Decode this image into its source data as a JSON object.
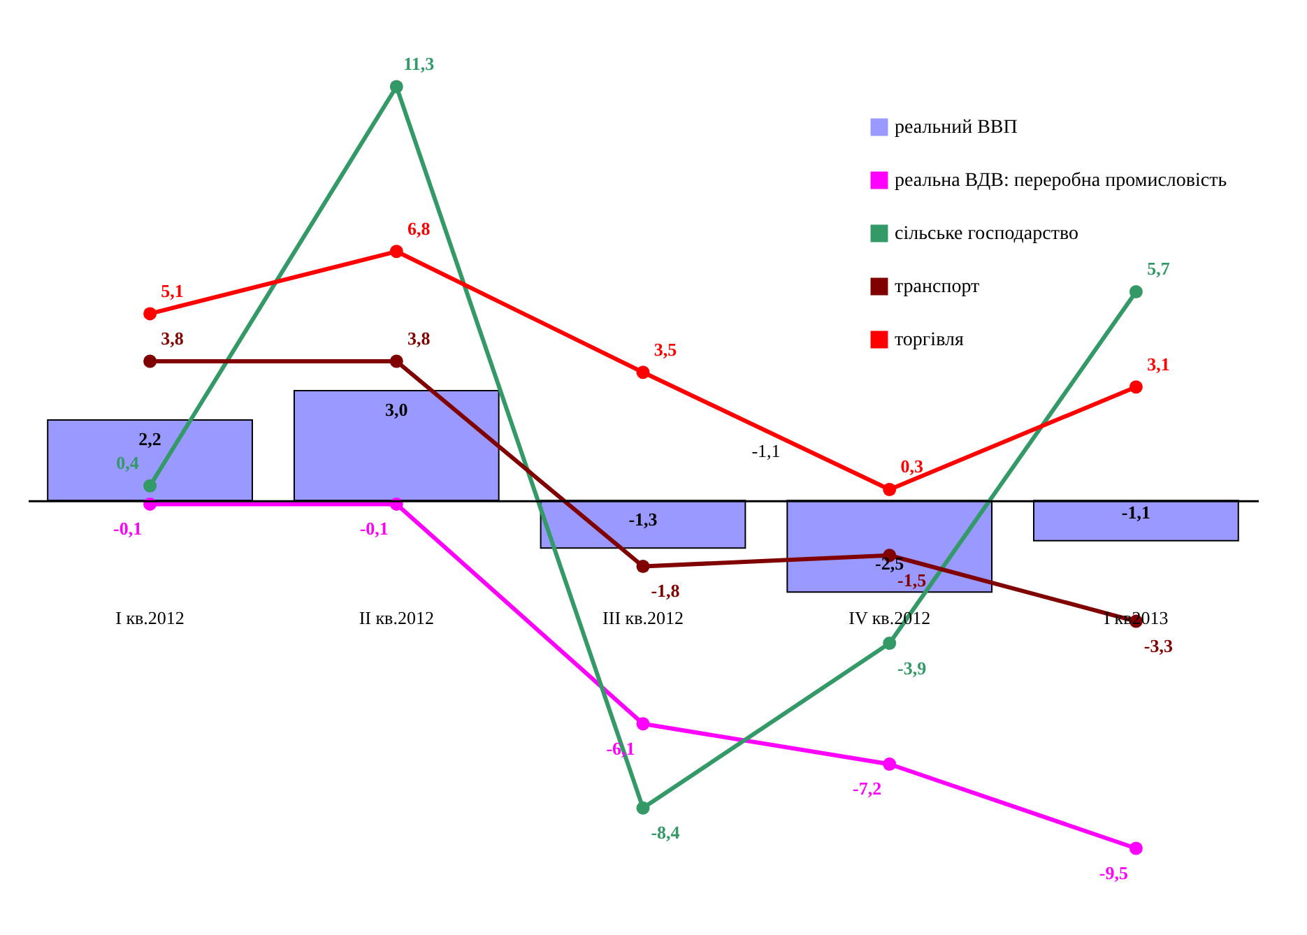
{
  "chart_data": {
    "type": "line",
    "categories": [
      "I кв.2012",
      "II кв.2012",
      "III кв.2012",
      "IV кв.2012",
      "I кв2013"
    ],
    "series": [
      {
        "name": "реальний ВВП",
        "type": "bar",
        "color": "#9999ff",
        "values": [
          2.2,
          3.0,
          -1.3,
          -2.5,
          -1.1
        ],
        "value_labels": [
          "2,2",
          "3,0",
          "-1,3",
          "-2,5",
          "-1,1"
        ]
      },
      {
        "name": "реальна ВДВ: переробна промисловість",
        "color": "#ff00ff",
        "values": [
          -0.1,
          -0.1,
          -6.1,
          -7.2,
          -9.5
        ],
        "value_labels": [
          "-0,1",
          "-0,1",
          "-6,1",
          "-7,2",
          "-9,5"
        ]
      },
      {
        "name": "сільське господарство",
        "color": "#339966",
        "values": [
          0.4,
          11.3,
          -8.4,
          -3.9,
          5.7
        ],
        "value_labels": [
          "0,4",
          "11,3",
          "-8,4",
          "-3,9",
          "5,7"
        ]
      },
      {
        "name": "транспорт",
        "color": "#800000",
        "values": [
          3.8,
          3.8,
          -1.8,
          -1.5,
          -3.3
        ],
        "value_labels": [
          "3,8",
          "3,8",
          "-1,8",
          "-1,5",
          "-3,3"
        ]
      },
      {
        "name": "торгівля",
        "color": "#ff0000",
        "values": [
          5.1,
          6.8,
          3.5,
          0.3,
          3.1
        ],
        "value_labels": [
          "5,1",
          "6,8",
          "3,5",
          "0,3",
          "3,1"
        ]
      }
    ],
    "annotations": [
      "-1,1"
    ],
    "legend": "top right",
    "marker": "circle",
    "line_style": "solid",
    "grid": false
  }
}
